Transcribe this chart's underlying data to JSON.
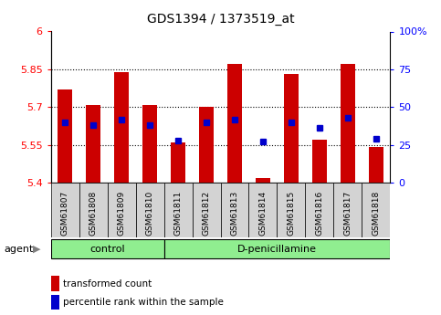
{
  "title": "GDS1394 / 1373519_at",
  "samples": [
    "GSM61807",
    "GSM61808",
    "GSM61809",
    "GSM61810",
    "GSM61811",
    "GSM61812",
    "GSM61813",
    "GSM61814",
    "GSM61815",
    "GSM61816",
    "GSM61817",
    "GSM61818"
  ],
  "transformed_count": [
    5.77,
    5.71,
    5.84,
    5.71,
    5.56,
    5.7,
    5.87,
    5.42,
    5.83,
    5.57,
    5.87,
    5.54
  ],
  "percentile_rank": [
    40,
    38,
    42,
    38,
    28,
    40,
    42,
    27,
    40,
    36,
    43,
    29
  ],
  "groups": [
    {
      "label": "control",
      "start": 0,
      "end": 4
    },
    {
      "label": "D-penicillamine",
      "start": 4,
      "end": 12
    }
  ],
  "ylim_left": [
    5.4,
    6.0
  ],
  "ylim_right": [
    0,
    100
  ],
  "yticks_left": [
    5.4,
    5.55,
    5.7,
    5.85,
    6.0
  ],
  "yticks_right": [
    0,
    25,
    50,
    75,
    100
  ],
  "ytick_labels_left": [
    "5.4",
    "5.55",
    "5.7",
    "5.85",
    "6"
  ],
  "ytick_labels_right": [
    "0",
    "25",
    "50",
    "75",
    "100%"
  ],
  "hlines": [
    5.55,
    5.7,
    5.85
  ],
  "bar_color": "#cc0000",
  "dot_color": "#0000cc",
  "bar_width": 0.5,
  "base_value": 5.4,
  "group_bg_color": "#90ee90",
  "sample_label_bg": "#d3d3d3",
  "plot_bg": "#ffffff",
  "agent_label": "agent",
  "legend_red_label": "transformed count",
  "legend_blue_label": "percentile rank within the sample"
}
